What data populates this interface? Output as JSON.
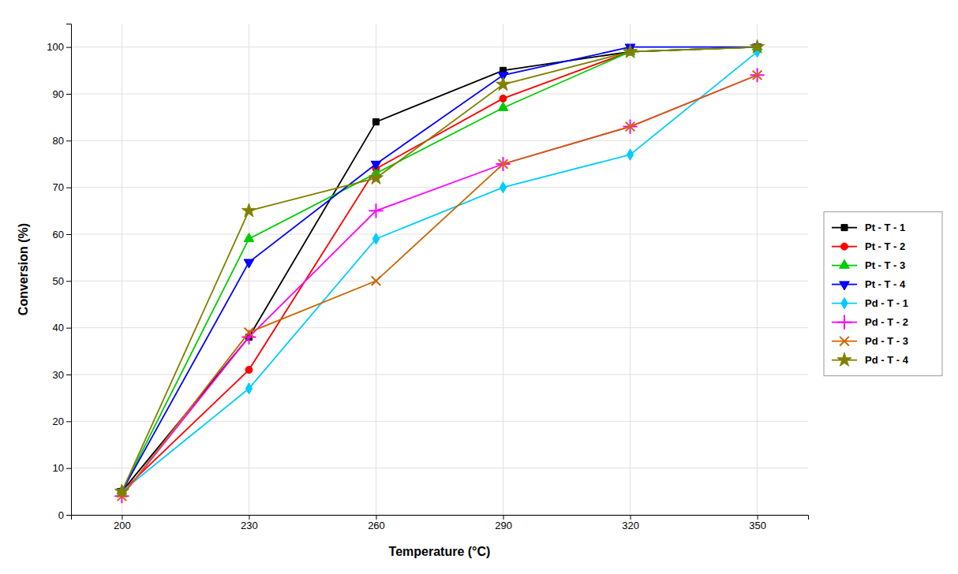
{
  "chart_data": {
    "type": "line",
    "x": [
      200,
      230,
      260,
      290,
      320,
      350
    ],
    "series": [
      {
        "name": "Pt - T - 1",
        "color": "#000000",
        "marker": "square",
        "values": [
          5,
          38,
          84,
          95,
          99,
          100
        ]
      },
      {
        "name": "Pt - T - 2",
        "color": "#ff0000",
        "marker": "circle",
        "values": [
          5,
          31,
          74,
          89,
          99,
          100
        ]
      },
      {
        "name": "Pt - T - 3",
        "color": "#00cc00",
        "marker": "triangle-up",
        "values": [
          5,
          59,
          73,
          87,
          99,
          100
        ]
      },
      {
        "name": "Pt - T - 4",
        "color": "#0000ff",
        "marker": "triangle-down",
        "values": [
          5,
          54,
          75,
          94,
          100,
          100
        ]
      },
      {
        "name": "Pd - T - 1",
        "color": "#00ccff",
        "marker": "diamond",
        "values": [
          5,
          27,
          59,
          70,
          77,
          99
        ]
      },
      {
        "name": "Pd - T - 2",
        "color": "#ff00ff",
        "marker": "plus",
        "values": [
          4,
          38,
          65,
          75,
          83,
          94
        ]
      },
      {
        "name": "Pd - T - 3",
        "color": "#cc6600",
        "marker": "x",
        "values": [
          4,
          39,
          50,
          75,
          83,
          94
        ]
      },
      {
        "name": "Pd - T - 4",
        "color": "#808000",
        "marker": "star",
        "values": [
          5,
          65,
          72,
          92,
          99,
          100
        ]
      }
    ],
    "xlabel": "Temperature (°C)",
    "ylabel": "Conversion (%)",
    "xlim": [
      188,
      362
    ],
    "ylim": [
      0,
      105
    ],
    "xticks": [
      200,
      230,
      260,
      290,
      320,
      350
    ],
    "yticks": [
      0,
      10,
      20,
      30,
      40,
      50,
      60,
      70,
      80,
      90,
      100
    ],
    "grid": true,
    "legend": "right"
  }
}
